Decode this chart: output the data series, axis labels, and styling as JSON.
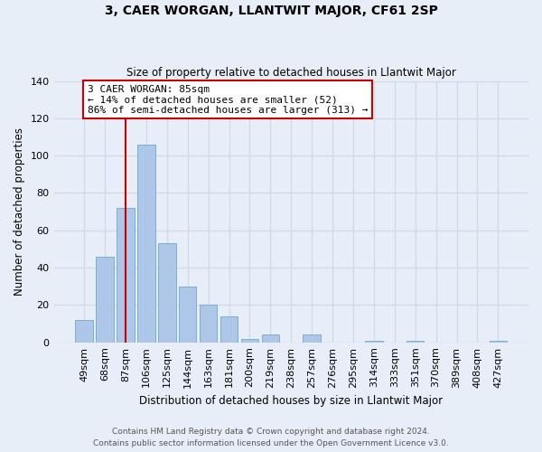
{
  "title": "3, CAER WORGAN, LLANTWIT MAJOR, CF61 2SP",
  "subtitle": "Size of property relative to detached houses in Llantwit Major",
  "xlabel": "Distribution of detached houses by size in Llantwit Major",
  "ylabel": "Number of detached properties",
  "bar_labels": [
    "49sqm",
    "68sqm",
    "87sqm",
    "106sqm",
    "125sqm",
    "144sqm",
    "163sqm",
    "181sqm",
    "200sqm",
    "219sqm",
    "238sqm",
    "257sqm",
    "276sqm",
    "295sqm",
    "314sqm",
    "333sqm",
    "351sqm",
    "370sqm",
    "389sqm",
    "408sqm",
    "427sqm"
  ],
  "bar_values": [
    12,
    46,
    72,
    106,
    53,
    30,
    20,
    14,
    2,
    4,
    0,
    4,
    0,
    0,
    1,
    0,
    1,
    0,
    0,
    0,
    1
  ],
  "bar_color": "#aec6e8",
  "bar_edge_color": "#7aafd4",
  "vline_x_index": 2,
  "vline_color": "#cc0000",
  "annotation_line1": "3 CAER WORGAN: 85sqm",
  "annotation_line2": "← 14% of detached houses are smaller (52)",
  "annotation_line3": "86% of semi-detached houses are larger (313) →",
  "annotation_box_color": "#ffffff",
  "annotation_box_edge_color": "#cc0000",
  "ylim": [
    0,
    140
  ],
  "yticks": [
    0,
    20,
    40,
    60,
    80,
    100,
    120,
    140
  ],
  "footer_line1": "Contains HM Land Registry data © Crown copyright and database right 2024.",
  "footer_line2": "Contains public sector information licensed under the Open Government Licence v3.0.",
  "background_color": "#e8eef8",
  "grid_color": "#d0daea"
}
